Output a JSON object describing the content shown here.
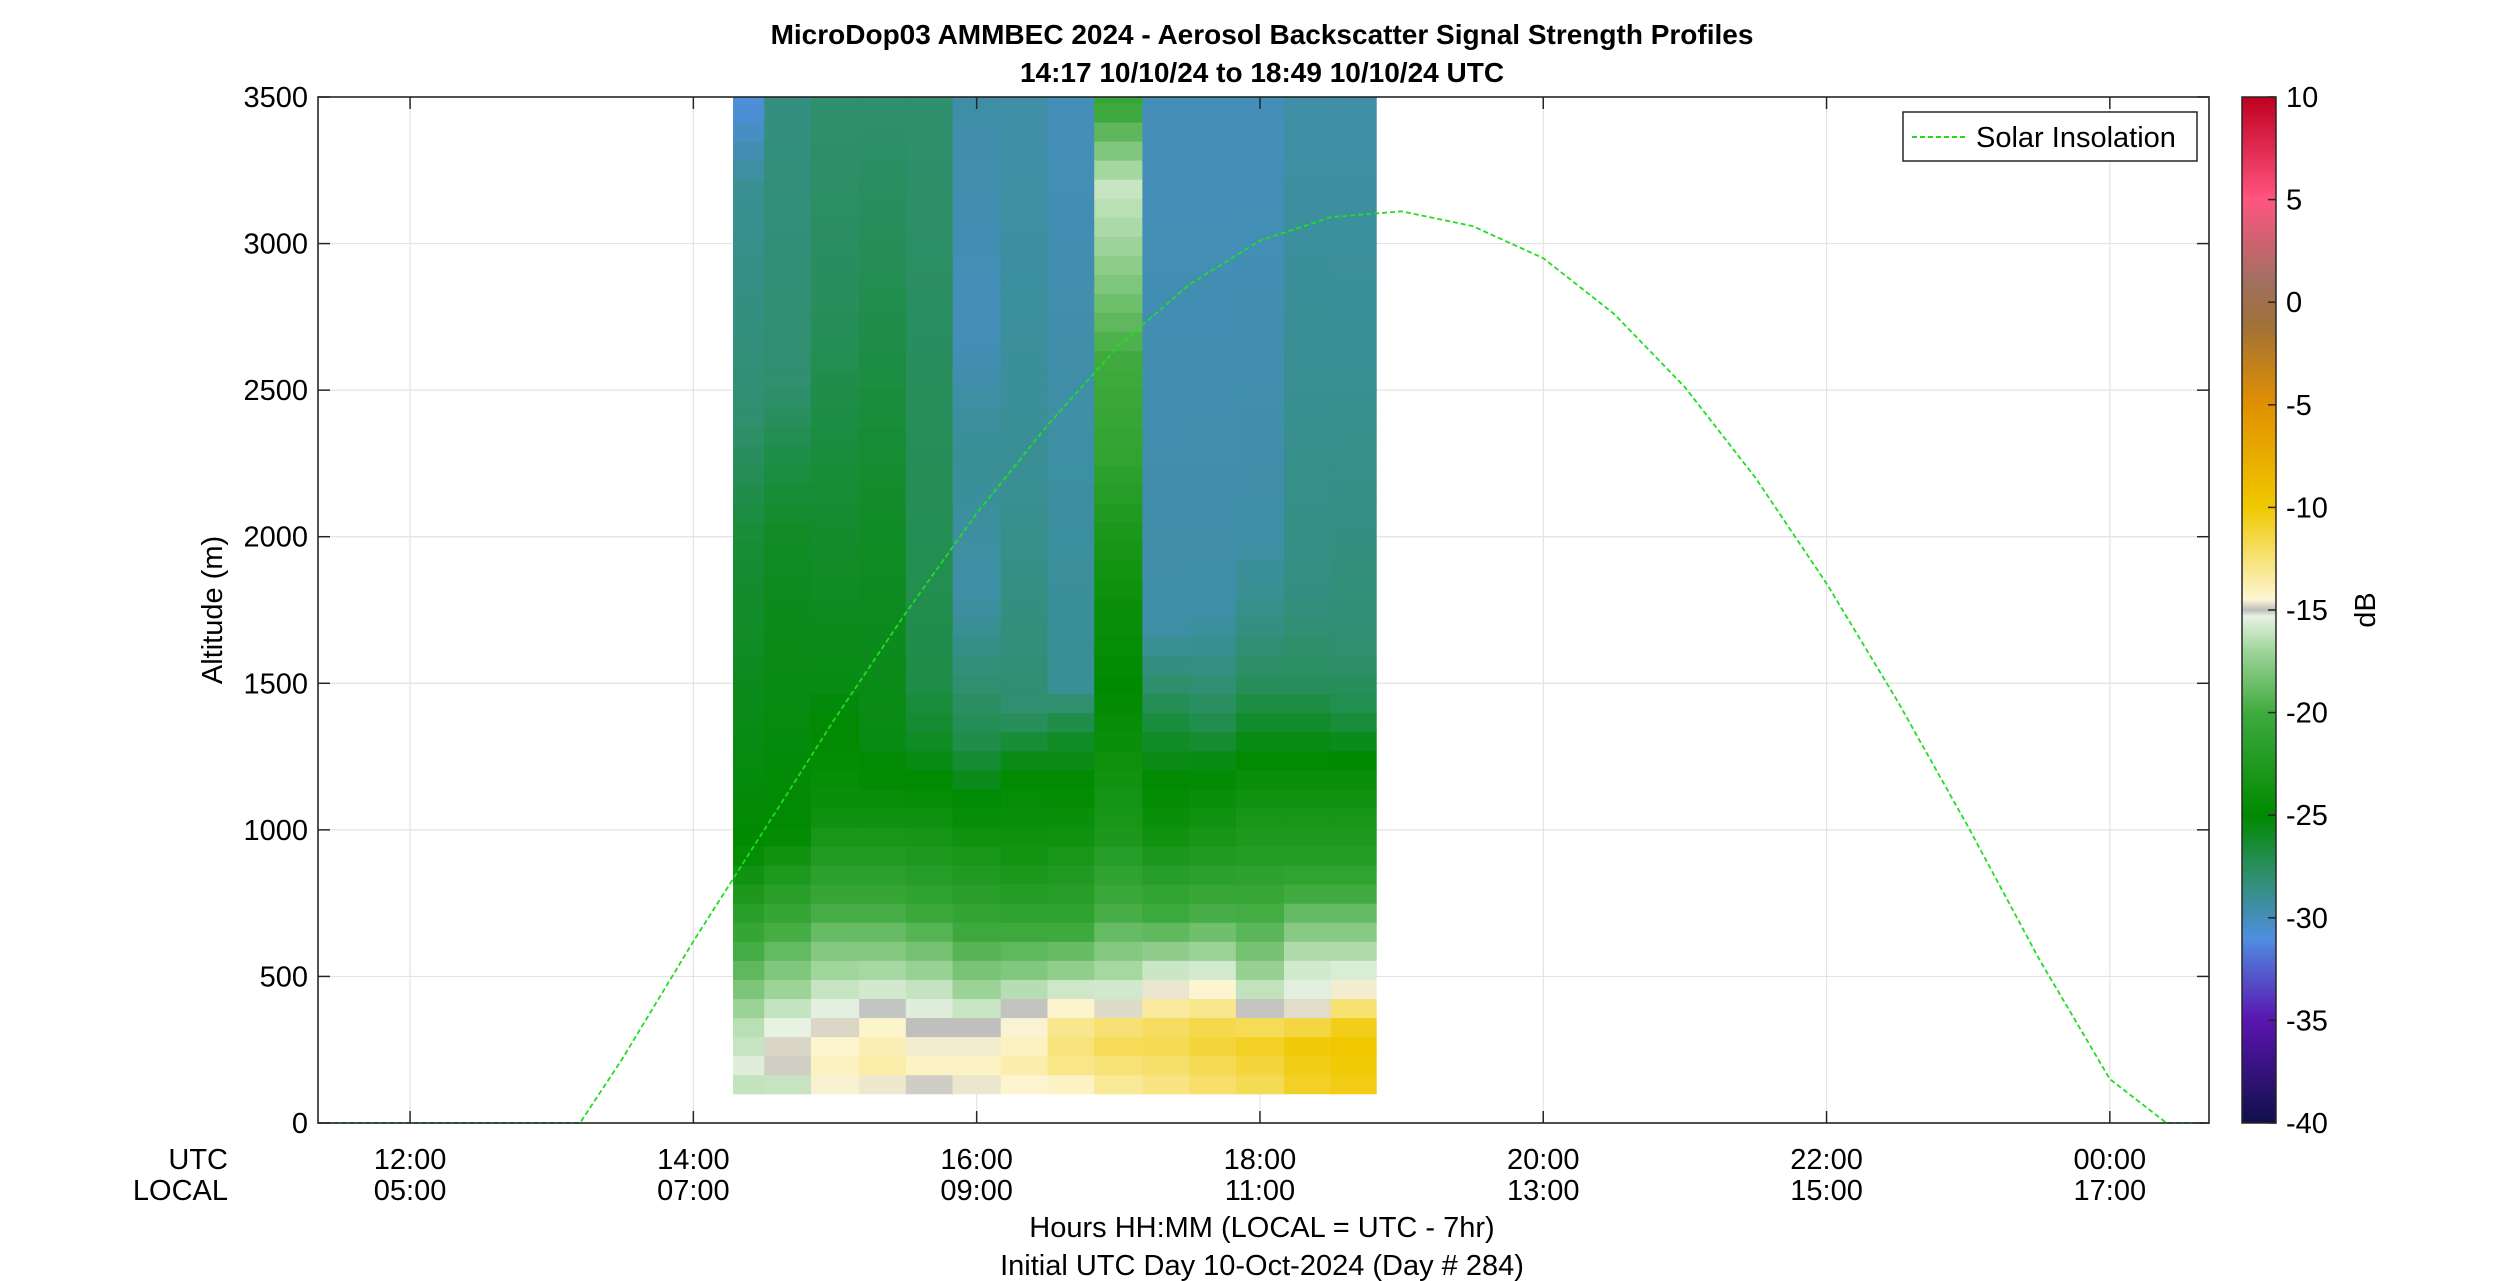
{
  "chart_data": {
    "type": "heatmap",
    "title": "MicroDop03 AMMBEC 2024 - Aerosol Backscatter Signal Strength Profiles",
    "subtitle": "14:17 10/10/24 to 18:49 10/10/24  UTC",
    "ylabel": "Altitude (m)",
    "xlabel": "Hours HH:MM  (LOCAL = UTC - 7hr)",
    "xlabel2": "Initial UTC Day 10-Oct-2024 (Day # 284)",
    "x_row_labels": [
      "UTC",
      "LOCAL"
    ],
    "xlim_hours": [
      11.35,
      24.7
    ],
    "ylim": [
      0,
      3500
    ],
    "grid": true,
    "x_ticks": [
      {
        "hour": 12,
        "utc": "12:00",
        "local": "05:00"
      },
      {
        "hour": 14,
        "utc": "14:00",
        "local": "07:00"
      },
      {
        "hour": 16,
        "utc": "16:00",
        "local": "09:00"
      },
      {
        "hour": 18,
        "utc": "18:00",
        "local": "11:00"
      },
      {
        "hour": 20,
        "utc": "20:00",
        "local": "13:00"
      },
      {
        "hour": 22,
        "utc": "22:00",
        "local": "15:00"
      },
      {
        "hour": 24,
        "utc": "00:00",
        "local": "17:00"
      }
    ],
    "y_ticks": [
      "0",
      "500",
      "1000",
      "1500",
      "2000",
      "2500",
      "3000",
      "3500"
    ],
    "y_tick_values": [
      0,
      500,
      1000,
      1500,
      2000,
      2500,
      3000,
      3500
    ],
    "colorbar": {
      "label": "dB",
      "range": [
        -40,
        10
      ],
      "tick_values": [
        10,
        5,
        0,
        -5,
        -10,
        -15,
        -20,
        -25,
        -30,
        -35,
        -40
      ],
      "tick_labels": [
        "10",
        "5",
        "0",
        "-5",
        "-10",
        "-15",
        "-20",
        "-25",
        "-30",
        "-35",
        "-40"
      ],
      "stops": [
        {
          "v": -40,
          "c": "#10104a"
        },
        {
          "v": -35,
          "c": "#5a14b0"
        },
        {
          "v": -31,
          "c": "#4f8ee0"
        },
        {
          "v": -28,
          "c": "#2f8f6e"
        },
        {
          "v": -25,
          "c": "#008a00"
        },
        {
          "v": -20,
          "c": "#3faa3f"
        },
        {
          "v": -17,
          "c": "#9fd49a"
        },
        {
          "v": -15.3,
          "c": "#e8f2e4"
        },
        {
          "v": -15,
          "c": "#bdbdbd"
        },
        {
          "v": -14.5,
          "c": "#fdf6d4"
        },
        {
          "v": -10,
          "c": "#f0c800"
        },
        {
          "v": -5,
          "c": "#e09000"
        },
        {
          "v": -1,
          "c": "#a0703a"
        },
        {
          "v": 1,
          "c": "#a07060"
        },
        {
          "v": 5,
          "c": "#ff5580"
        },
        {
          "v": 10,
          "c": "#c00020"
        }
      ]
    },
    "heatmap": {
      "time_bins_hours": [
        14.28,
        14.5,
        14.83,
        15.17,
        15.5,
        15.83,
        16.17,
        16.5,
        16.83,
        17.17,
        17.5,
        17.83,
        18.17,
        18.5,
        18.82
      ],
      "altitude_range": [
        100,
        3500
      ],
      "altitude_bin_m": 65,
      "column_profiles_db": [
        [
          [
            100,
            -17
          ],
          [
            170,
            -15.2
          ],
          [
            240,
            -16
          ],
          [
            350,
            -16.5
          ],
          [
            450,
            -18
          ],
          [
            600,
            -20
          ],
          [
            800,
            -23
          ],
          [
            950,
            -25
          ],
          [
            2000,
            -26.5
          ],
          [
            2400,
            -28
          ],
          [
            3200,
            -29
          ],
          [
            3500,
            -31
          ]
        ],
        [
          [
            100,
            -17
          ],
          [
            170,
            -15
          ],
          [
            240,
            -14.6
          ],
          [
            350,
            -15.5
          ],
          [
            450,
            -17
          ],
          [
            600,
            -19
          ],
          [
            800,
            -22
          ],
          [
            1000,
            -25
          ],
          [
            2000,
            -26
          ],
          [
            2300,
            -27
          ],
          [
            2500,
            -28
          ],
          [
            3500,
            -28.5
          ]
        ],
        [
          [
            100,
            -15
          ],
          [
            170,
            -14
          ],
          [
            300,
            -14.5
          ],
          [
            450,
            -16
          ],
          [
            600,
            -18
          ],
          [
            800,
            -21
          ],
          [
            1050,
            -24
          ],
          [
            1500,
            -25.5
          ],
          [
            2200,
            -26.5
          ],
          [
            2800,
            -27.5
          ],
          [
            3500,
            -28
          ]
        ],
        [
          [
            100,
            -15.6
          ],
          [
            170,
            -13.5
          ],
          [
            300,
            -14
          ],
          [
            450,
            -15.7
          ],
          [
            600,
            -18
          ],
          [
            800,
            -21
          ],
          [
            1050,
            -24
          ],
          [
            1300,
            -25.5
          ],
          [
            2000,
            -26
          ],
          [
            2700,
            -27
          ],
          [
            3500,
            -28
          ]
        ],
        [
          [
            100,
            -15.6
          ],
          [
            170,
            -14
          ],
          [
            330,
            -15
          ],
          [
            450,
            -16
          ],
          [
            600,
            -18.5
          ],
          [
            800,
            -21.5
          ],
          [
            1100,
            -24.5
          ],
          [
            1300,
            -26
          ],
          [
            1500,
            -27
          ],
          [
            2500,
            -27.5
          ],
          [
            3500,
            -28
          ]
        ],
        [
          [
            100,
            -15.2
          ],
          [
            170,
            -14
          ],
          [
            330,
            -15
          ],
          [
            450,
            -17
          ],
          [
            600,
            -19.5
          ],
          [
            800,
            -22
          ],
          [
            1000,
            -24
          ],
          [
            1300,
            -27
          ],
          [
            1800,
            -29.5
          ],
          [
            2300,
            -29
          ],
          [
            2700,
            -30
          ],
          [
            3500,
            -29.5
          ]
        ],
        [
          [
            100,
            -15.2
          ],
          [
            170,
            -13.5
          ],
          [
            400,
            -15
          ],
          [
            500,
            -17.5
          ],
          [
            700,
            -21
          ],
          [
            900,
            -23.5
          ],
          [
            1200,
            -25
          ],
          [
            1400,
            -28
          ],
          [
            2200,
            -29
          ],
          [
            3500,
            -29.5
          ]
        ],
        [
          [
            100,
            -15.2
          ],
          [
            170,
            -13
          ],
          [
            300,
            -12.5
          ],
          [
            400,
            -14.5
          ],
          [
            500,
            -17
          ],
          [
            700,
            -21
          ],
          [
            1000,
            -24
          ],
          [
            1300,
            -26
          ],
          [
            1500,
            -29
          ],
          [
            3500,
            -30
          ]
        ],
        [
          [
            100,
            -13.5
          ],
          [
            300,
            -11.5
          ],
          [
            400,
            -15
          ],
          [
            500,
            -16.5
          ],
          [
            700,
            -19.5
          ],
          [
            1000,
            -23
          ],
          [
            1500,
            -25
          ],
          [
            1800,
            -24
          ],
          [
            2000,
            -23
          ],
          [
            2300,
            -21
          ],
          [
            2600,
            -20
          ],
          [
            3000,
            -17
          ],
          [
            3200,
            -16
          ],
          [
            3500,
            -21
          ]
        ],
        [
          [
            100,
            -13
          ],
          [
            300,
            -11.5
          ],
          [
            500,
            -15.5
          ],
          [
            700,
            -20
          ],
          [
            1000,
            -24
          ],
          [
            1300,
            -26
          ],
          [
            1500,
            -28
          ],
          [
            1700,
            -29.5
          ],
          [
            3500,
            -30
          ]
        ],
        [
          [
            100,
            -12.5
          ],
          [
            300,
            -11
          ],
          [
            500,
            -15.3
          ],
          [
            700,
            -19.5
          ],
          [
            950,
            -23
          ],
          [
            1200,
            -25
          ],
          [
            1350,
            -27
          ],
          [
            1550,
            -28.5
          ],
          [
            1750,
            -29.5
          ],
          [
            3500,
            -30
          ]
        ],
        [
          [
            100,
            -12
          ],
          [
            300,
            -10.5
          ],
          [
            400,
            -15.3
          ],
          [
            600,
            -18.5
          ],
          [
            900,
            -22
          ],
          [
            1200,
            -24.5
          ],
          [
            1500,
            -27.5
          ],
          [
            1700,
            -28.5
          ],
          [
            2000,
            -29.5
          ],
          [
            3500,
            -30
          ]
        ],
        [
          [
            100,
            -11
          ],
          [
            300,
            -10
          ],
          [
            400,
            -15.1
          ],
          [
            550,
            -16
          ],
          [
            700,
            -18.5
          ],
          [
            900,
            -22
          ],
          [
            1200,
            -24.5
          ],
          [
            1500,
            -27.5
          ],
          [
            1800,
            -28.5
          ],
          [
            3500,
            -29.5
          ]
        ],
        [
          [
            100,
            -10.5
          ],
          [
            300,
            -9.8
          ],
          [
            380,
            -12
          ],
          [
            470,
            -15
          ],
          [
            550,
            -16
          ],
          [
            700,
            -18.5
          ],
          [
            900,
            -22
          ],
          [
            1200,
            -24.5
          ],
          [
            1400,
            -27
          ],
          [
            1600,
            -28
          ],
          [
            2000,
            -28.5
          ],
          [
            2600,
            -29
          ],
          [
            3500,
            -29.5
          ]
        ]
      ]
    },
    "series": [
      {
        "name": "Solar Insolation",
        "type": "line",
        "color": "#22dd22",
        "style": "dashed",
        "x_hours": [
          11.35,
          13.2,
          13.5,
          14.0,
          14.5,
          15.0,
          15.5,
          16.0,
          16.5,
          17.0,
          17.5,
          18.0,
          18.5,
          19.0,
          19.5,
          20.0,
          20.5,
          21.0,
          21.5,
          22.0,
          22.5,
          23.0,
          23.5,
          24.0,
          24.4,
          24.7
        ],
        "y": [
          0,
          0,
          220,
          620,
          1000,
          1380,
          1740,
          2080,
          2380,
          2650,
          2860,
          3010,
          3090,
          3110,
          3060,
          2950,
          2760,
          2510,
          2200,
          1840,
          1440,
          1010,
          560,
          150,
          0,
          0
        ]
      }
    ],
    "legend": {
      "position": "top-right",
      "entries": [
        "Solar Insolation"
      ]
    }
  }
}
